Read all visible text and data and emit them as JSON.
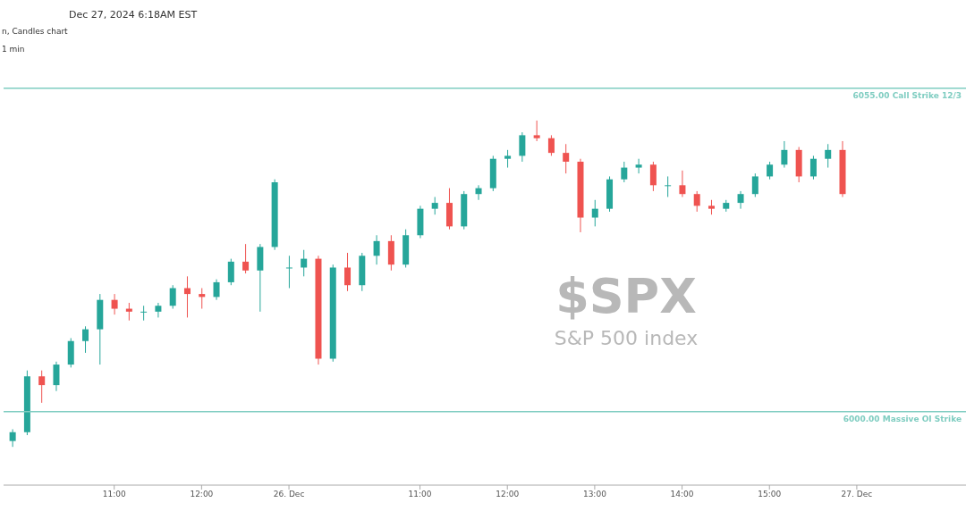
{
  "chart_data": {
    "type": "candlestick",
    "title": "$SPX",
    "subtitle": "S&P 500 index",
    "annotations": [
      "Dec 27, 2024 6:18AM EST",
      "n, Candles chart",
      "1 min"
    ],
    "categories": [
      null,
      null,
      null,
      null,
      null,
      null,
      null,
      "11:00",
      null,
      null,
      null,
      null,
      null,
      "12:00",
      null,
      null,
      null,
      null,
      null,
      "26. Dec",
      null,
      null,
      null,
      null,
      null,
      null,
      null,
      null,
      "11:00",
      null,
      null,
      null,
      null,
      null,
      "12:00",
      null,
      null,
      null,
      null,
      null,
      "13:00",
      null,
      null,
      null,
      null,
      null,
      "14:00",
      null,
      null,
      null,
      null,
      null,
      "15:00",
      null,
      null,
      null,
      null,
      null,
      "27. Dec"
    ],
    "ohlc": [
      [
        5995,
        5997,
        5994,
        5996.5
      ],
      [
        5996.5,
        6007,
        5996,
        6006
      ],
      [
        6006,
        6007,
        6001.5,
        6004.5
      ],
      [
        6004.5,
        6008.5,
        6003.5,
        6008
      ],
      [
        6008,
        6012.5,
        6007.5,
        6012
      ],
      [
        6012,
        6014.5,
        6010,
        6014
      ],
      [
        6014,
        6020,
        6008,
        6019
      ],
      [
        6019,
        6020,
        6016.5,
        6017.5
      ],
      [
        6017.5,
        6018.5,
        6015.5,
        6017
      ],
      [
        6017,
        6018,
        6015.5,
        6017
      ],
      [
        6017,
        6018.5,
        6016,
        6018
      ],
      [
        6018,
        6021.5,
        6017.5,
        6021
      ],
      [
        6021,
        6023,
        6016,
        6020
      ],
      [
        6020,
        6021,
        6017.5,
        6019.5
      ],
      [
        6019.5,
        6022.5,
        6019,
        6022
      ],
      [
        6022,
        6026,
        6021.5,
        6025.5
      ],
      [
        6025.5,
        6028.5,
        6023.5,
        6024
      ],
      [
        6024,
        6028.5,
        6017,
        6028
      ],
      [
        6028,
        6039.5,
        6027.5,
        6039
      ],
      [
        6024.5,
        6026.5,
        6021,
        6024.5
      ],
      [
        6024.5,
        6027.5,
        6023,
        6026
      ],
      [
        6026,
        6026.5,
        6008,
        6009
      ],
      [
        6009,
        6025,
        6008.5,
        6024.5
      ],
      [
        6024.5,
        6027,
        6020.5,
        6021.5
      ],
      [
        6021.5,
        6027,
        6020.5,
        6026.5
      ],
      [
        6026.5,
        6030,
        6025,
        6029
      ],
      [
        6029,
        6030,
        6024,
        6025
      ],
      [
        6025,
        6031,
        6024.5,
        6030
      ],
      [
        6030,
        6035,
        6029.5,
        6034.5
      ],
      [
        6034.5,
        6036.5,
        6033.5,
        6035.5
      ],
      [
        6035.5,
        6038,
        6031,
        6031.5
      ],
      [
        6031.5,
        6037.5,
        6031,
        6037
      ],
      [
        6037,
        6038.5,
        6036,
        6038
      ],
      [
        6038,
        6043.5,
        6037.5,
        6043
      ],
      [
        6043,
        6044.5,
        6041.5,
        6043.5
      ],
      [
        6043.5,
        6047.5,
        6042.5,
        6047
      ],
      [
        6047,
        6049.5,
        6046,
        6046.5
      ],
      [
        6046.5,
        6047,
        6043.5,
        6044
      ],
      [
        6044,
        6045.5,
        6040.5,
        6042.5
      ],
      [
        6042.5,
        6043,
        6030.5,
        6033
      ],
      [
        6033,
        6036,
        6031.5,
        6034.5
      ],
      [
        6034.5,
        6040,
        6034,
        6039.5
      ],
      [
        6039.5,
        6042.5,
        6039,
        6041.5
      ],
      [
        6041.5,
        6043,
        6040.5,
        6042
      ],
      [
        6042,
        6042.5,
        6037.5,
        6038.5
      ],
      [
        6038.5,
        6040,
        6036.5,
        6038.5
      ],
      [
        6038.5,
        6041,
        6036.5,
        6037
      ],
      [
        6037,
        6037.5,
        6034,
        6035
      ],
      [
        6035,
        6036,
        6033.5,
        6034.5
      ],
      [
        6034.5,
        6036,
        6034,
        6035.5
      ],
      [
        6035.5,
        6037.5,
        6034.5,
        6037
      ],
      [
        6037,
        6040.5,
        6036.5,
        6040
      ],
      [
        6040,
        6042.5,
        6039.5,
        6042
      ],
      [
        6042,
        6046,
        6041.5,
        6044.5
      ],
      [
        6044.5,
        6045,
        6039,
        6040
      ],
      [
        6040,
        6043.5,
        6039.5,
        6043
      ],
      [
        6043,
        6045.5,
        6041.5,
        6044.5
      ],
      [
        6044.5,
        6046,
        6036.5,
        6037
      ],
      null
    ],
    "colors": [
      "#26a69a",
      "#26a69a",
      "#ef5350",
      "#26a69a",
      "#26a69a",
      "#26a69a",
      "#26a69a",
      "#ef5350",
      "#ef5350",
      "#26a69a",
      "#26a69a",
      "#26a69a",
      "#ef5350",
      "#ef5350",
      "#26a69a",
      "#26a69a",
      "#ef5350",
      "#26a69a",
      "#26a69a",
      "#26a69a",
      "#26a69a",
      "#ef5350",
      "#26a69a",
      "#ef5350",
      "#26a69a",
      "#26a69a",
      "#ef5350",
      "#26a69a",
      "#26a69a",
      "#26a69a",
      "#ef5350",
      "#26a69a",
      "#26a69a",
      "#26a69a",
      "#26a69a",
      "#26a69a",
      "#ef5350",
      "#ef5350",
      "#ef5350",
      "#ef5350",
      "#26a69a",
      "#26a69a",
      "#26a69a",
      "#26a69a",
      "#ef5350",
      "#26a69a",
      "#ef5350",
      "#ef5350",
      "#ef5350",
      "#26a69a",
      "#26a69a",
      "#26a69a",
      "#26a69a",
      "#26a69a",
      "#ef5350",
      "#26a69a",
      "#26a69a",
      "#ef5350",
      null
    ],
    "ylim": [
      5987.5,
      6070
    ],
    "tick_labels": "x",
    "ref_lines": [
      {
        "axis": "y",
        "value": 6055,
        "label": "6055.00 Call Strike 12/3",
        "color": "#7fcdc1"
      },
      {
        "axis": "y",
        "value": 6000,
        "label": "6000.00 Massive OI Strike",
        "color": "#7fcdc1"
      }
    ]
  }
}
